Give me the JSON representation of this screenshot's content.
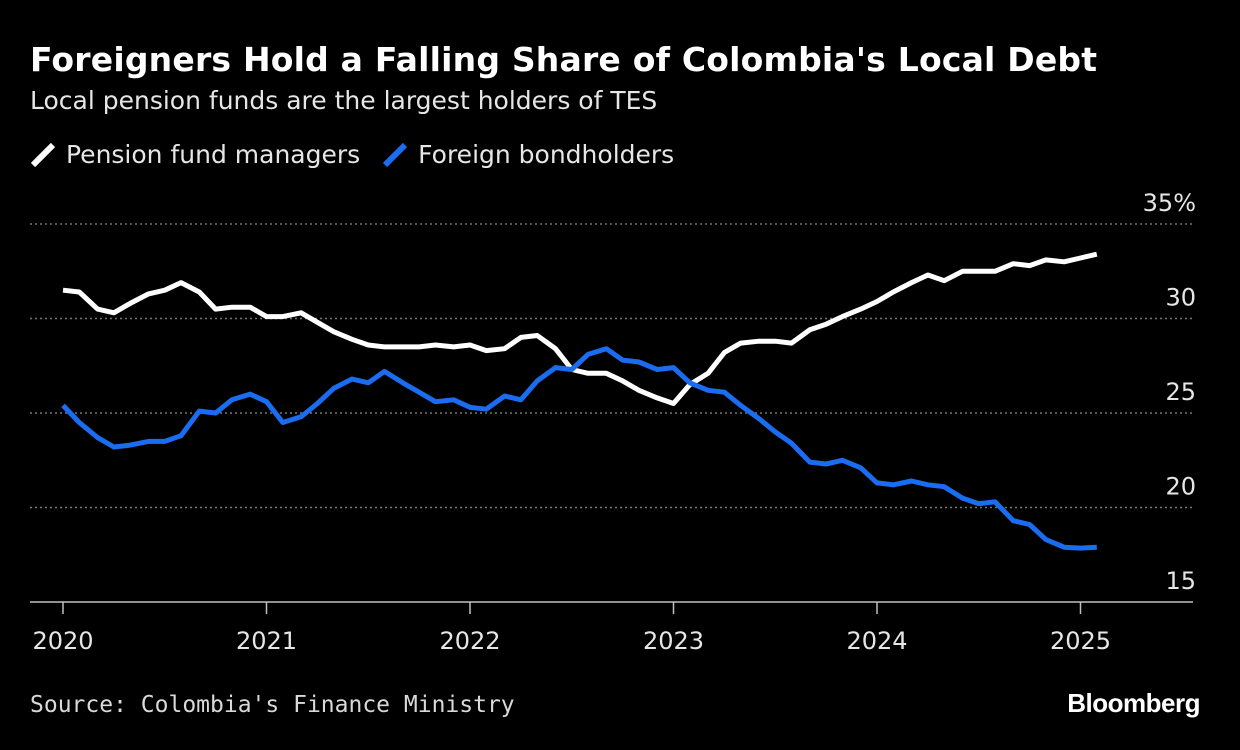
{
  "header": {
    "title": "Foreigners Hold a Falling Share of Colombia's Local Debt",
    "subtitle": "Local pension funds are the largest holders of TES"
  },
  "footer": {
    "source": "Source: Colombia's Finance Ministry",
    "brand": "Bloomberg"
  },
  "colors": {
    "background": "#000000",
    "pension": "#ffffff",
    "foreign": "#1a6cf0",
    "grid": "#777777",
    "text": "#e6e6e6"
  },
  "chart_data": {
    "type": "line",
    "title": "Foreigners Hold a Falling Share of Colombia's Local Debt",
    "subtitle": "Local pension funds are the largest holders of TES",
    "xlabel": "",
    "ylabel": "",
    "x_ticks": [
      "2020",
      "2021",
      "2022",
      "2023",
      "2024",
      "2025"
    ],
    "y_ticks": [
      "15",
      "20",
      "25",
      "30",
      "35%"
    ],
    "y_tick_values": [
      15,
      20,
      25,
      30,
      35
    ],
    "ylim": [
      15,
      35
    ],
    "xlim": [
      2019.83,
      2025.6
    ],
    "grid": "horizontal dotted",
    "y_axis_side": "right",
    "legend": "top-left",
    "series": [
      {
        "name": "Pension fund managers",
        "color": "#ffffff",
        "points": [
          [
            2020.0,
            31.5
          ],
          [
            2020.08,
            31.4
          ],
          [
            2020.17,
            30.5
          ],
          [
            2020.25,
            30.3
          ],
          [
            2020.33,
            30.8
          ],
          [
            2020.42,
            31.3
          ],
          [
            2020.5,
            31.5
          ],
          [
            2020.58,
            31.9
          ],
          [
            2020.67,
            31.4
          ],
          [
            2020.75,
            30.5
          ],
          [
            2020.83,
            30.6
          ],
          [
            2020.92,
            30.6
          ],
          [
            2021.0,
            30.1
          ],
          [
            2021.08,
            30.1
          ],
          [
            2021.17,
            30.3
          ],
          [
            2021.25,
            29.8
          ],
          [
            2021.33,
            29.3
          ],
          [
            2021.42,
            28.9
          ],
          [
            2021.5,
            28.6
          ],
          [
            2021.58,
            28.5
          ],
          [
            2021.67,
            28.5
          ],
          [
            2021.75,
            28.5
          ],
          [
            2021.83,
            28.6
          ],
          [
            2021.92,
            28.5
          ],
          [
            2022.0,
            28.6
          ],
          [
            2022.08,
            28.3
          ],
          [
            2022.17,
            28.4
          ],
          [
            2022.25,
            29.0
          ],
          [
            2022.33,
            29.1
          ],
          [
            2022.42,
            28.4
          ],
          [
            2022.5,
            27.3
          ],
          [
            2022.58,
            27.1
          ],
          [
            2022.67,
            27.1
          ],
          [
            2022.75,
            26.7
          ],
          [
            2022.83,
            26.2
          ],
          [
            2022.92,
            25.8
          ],
          [
            2023.0,
            25.5
          ],
          [
            2023.08,
            26.5
          ],
          [
            2023.17,
            27.1
          ],
          [
            2023.25,
            28.2
          ],
          [
            2023.33,
            28.7
          ],
          [
            2023.42,
            28.8
          ],
          [
            2023.5,
            28.8
          ],
          [
            2023.58,
            28.7
          ],
          [
            2023.67,
            29.4
          ],
          [
            2023.75,
            29.7
          ],
          [
            2023.83,
            30.1
          ],
          [
            2023.92,
            30.5
          ],
          [
            2024.0,
            30.9
          ],
          [
            2024.08,
            31.4
          ],
          [
            2024.17,
            31.9
          ],
          [
            2024.25,
            32.3
          ],
          [
            2024.33,
            32.0
          ],
          [
            2024.42,
            32.5
          ],
          [
            2024.5,
            32.5
          ],
          [
            2024.58,
            32.5
          ],
          [
            2024.67,
            32.9
          ],
          [
            2024.75,
            32.8
          ],
          [
            2024.83,
            33.1
          ],
          [
            2024.92,
            33.0
          ],
          [
            2025.0,
            33.2
          ],
          [
            2025.08,
            33.4
          ]
        ]
      },
      {
        "name": "Foreign bondholders",
        "color": "#1a6cf0",
        "points": [
          [
            2020.0,
            25.4
          ],
          [
            2020.08,
            24.5
          ],
          [
            2020.17,
            23.7
          ],
          [
            2020.25,
            23.2
          ],
          [
            2020.33,
            23.3
          ],
          [
            2020.42,
            23.5
          ],
          [
            2020.5,
            23.5
          ],
          [
            2020.58,
            23.8
          ],
          [
            2020.67,
            25.1
          ],
          [
            2020.75,
            25.0
          ],
          [
            2020.83,
            25.7
          ],
          [
            2020.92,
            26.0
          ],
          [
            2021.0,
            25.6
          ],
          [
            2021.08,
            24.5
          ],
          [
            2021.17,
            24.8
          ],
          [
            2021.25,
            25.5
          ],
          [
            2021.33,
            26.3
          ],
          [
            2021.42,
            26.8
          ],
          [
            2021.5,
            26.6
          ],
          [
            2021.58,
            27.2
          ],
          [
            2021.67,
            26.6
          ],
          [
            2021.75,
            26.1
          ],
          [
            2021.83,
            25.6
          ],
          [
            2021.92,
            25.7
          ],
          [
            2022.0,
            25.3
          ],
          [
            2022.08,
            25.2
          ],
          [
            2022.17,
            25.9
          ],
          [
            2022.25,
            25.7
          ],
          [
            2022.33,
            26.7
          ],
          [
            2022.42,
            27.4
          ],
          [
            2022.5,
            27.3
          ],
          [
            2022.58,
            28.1
          ],
          [
            2022.67,
            28.4
          ],
          [
            2022.75,
            27.8
          ],
          [
            2022.83,
            27.7
          ],
          [
            2022.92,
            27.3
          ],
          [
            2023.0,
            27.4
          ],
          [
            2023.08,
            26.6
          ],
          [
            2023.17,
            26.2
          ],
          [
            2023.25,
            26.1
          ],
          [
            2023.33,
            25.4
          ],
          [
            2023.42,
            24.7
          ],
          [
            2023.5,
            24.0
          ],
          [
            2023.58,
            23.4
          ],
          [
            2023.67,
            22.4
          ],
          [
            2023.75,
            22.3
          ],
          [
            2023.83,
            22.5
          ],
          [
            2023.92,
            22.1
          ],
          [
            2024.0,
            21.3
          ],
          [
            2024.08,
            21.2
          ],
          [
            2024.17,
            21.4
          ],
          [
            2024.25,
            21.2
          ],
          [
            2024.33,
            21.1
          ],
          [
            2024.42,
            20.5
          ],
          [
            2024.5,
            20.2
          ],
          [
            2024.58,
            20.3
          ],
          [
            2024.67,
            19.3
          ],
          [
            2024.75,
            19.1
          ],
          [
            2024.83,
            18.3
          ],
          [
            2024.92,
            17.9
          ],
          [
            2025.0,
            17.85
          ],
          [
            2025.08,
            17.9
          ]
        ]
      }
    ]
  }
}
